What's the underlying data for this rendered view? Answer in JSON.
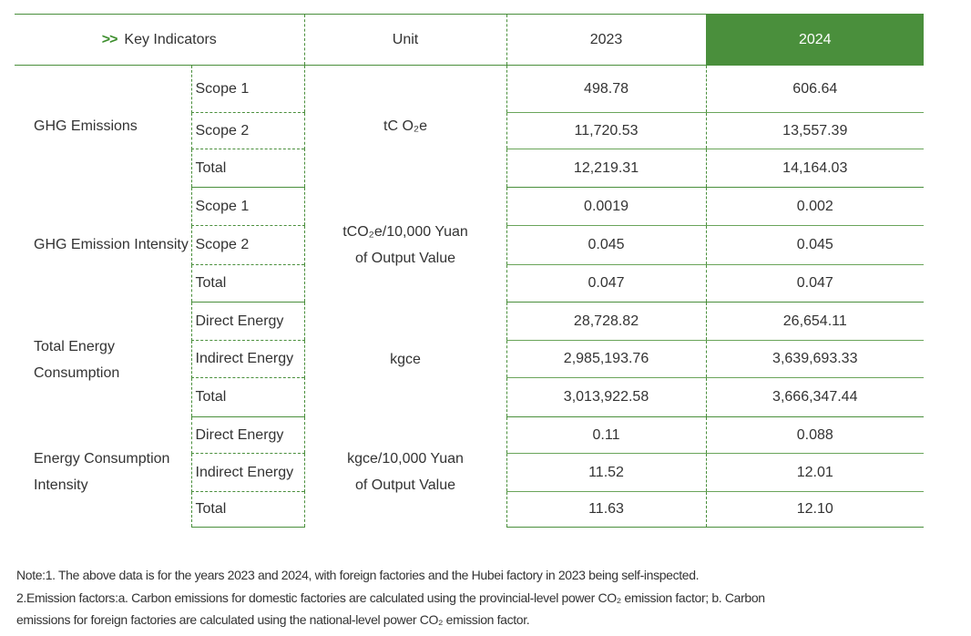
{
  "header": {
    "arrow": ">>",
    "key_indicators": "Key Indicators",
    "unit": "Unit",
    "year1": "2023",
    "year2": "2024"
  },
  "colors": {
    "accent": "#4a8f3c"
  },
  "groups": [
    {
      "label": "GHG Emissions",
      "unit": "tC O₂e",
      "rows": [
        {
          "label": "Scope 1",
          "v2023": "498.78",
          "v2024": "606.64"
        },
        {
          "label": "Scope 2",
          "v2023": "11,720.53",
          "v2024": "13,557.39"
        },
        {
          "label": "Total",
          "v2023": "12,219.31",
          "v2024": "14,164.03"
        }
      ]
    },
    {
      "label": "GHG Emission Intensity",
      "unit": "tCO₂e/10,000 Yuan of Output Value",
      "rows": [
        {
          "label": "Scope 1",
          "v2023": "0.0019",
          "v2024": "0.002"
        },
        {
          "label": "Scope 2",
          "v2023": "0.045",
          "v2024": "0.045"
        },
        {
          "label": "Total",
          "v2023": "0.047",
          "v2024": "0.047"
        }
      ]
    },
    {
      "label": "Total Energy Consumption",
      "unit": "kgce",
      "rows": [
        {
          "label": "Direct Energy",
          "v2023": "28,728.82",
          "v2024": "26,654.11"
        },
        {
          "label": "Indirect Energy",
          "v2023": "2,985,193.76",
          "v2024": "3,639,693.33"
        },
        {
          "label": "Total",
          "v2023": "3,013,922.58",
          "v2024": "3,666,347.44"
        }
      ]
    },
    {
      "label": "Energy Consumption Intensity",
      "unit": "kgce/10,000 Yuan of Output Value",
      "rows": [
        {
          "label": "Direct Energy",
          "v2023": "0.11",
          "v2024": "0.088"
        },
        {
          "label": "Indirect Energy",
          "v2023": "11.52",
          "v2024": "12.01"
        },
        {
          "label": "Total",
          "v2023": "11.63",
          "v2024": "12.10"
        }
      ]
    }
  ],
  "notes": [
    "Note:1. The above data is for the years 2023 and 2024, with foreign factories and the Hubei factory in 2023 being self-inspected.",
    "2.Emission factors:a. Carbon emissions for domestic factories are calculated using the provincial-level power CO₂ emission factor;  b. Carbon",
    "emissions for foreign factories are calculated using the national-level power CO₂ emission factor."
  ]
}
